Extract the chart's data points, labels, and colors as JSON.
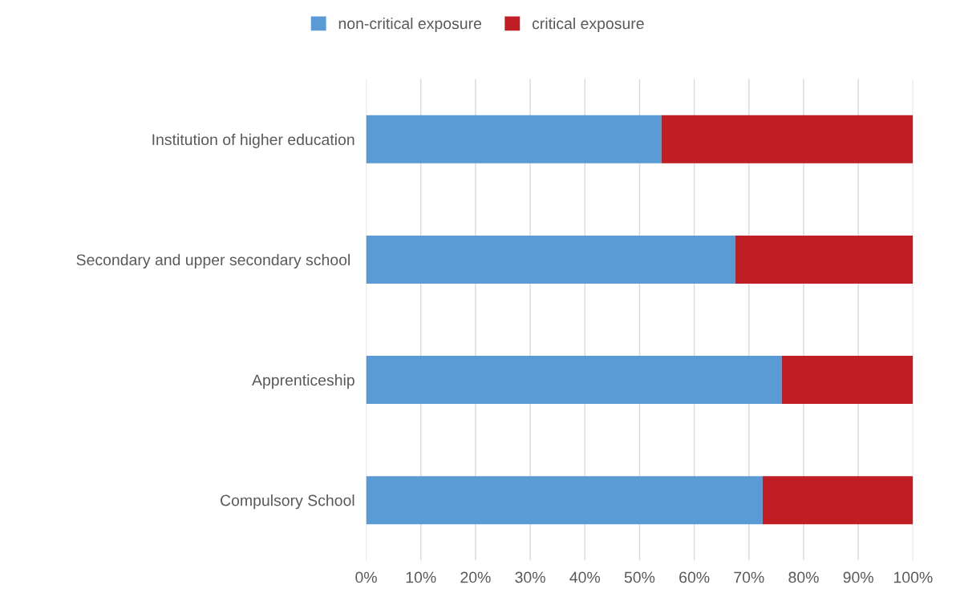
{
  "chart_data": {
    "type": "bar",
    "orientation": "horizontal",
    "stacked": true,
    "categories": [
      "Institution of higher education",
      "Secondary and upper secondary school ",
      "Apprenticeship",
      "Compulsory School"
    ],
    "series": [
      {
        "name": "non-critical exposure",
        "color": "#5b9bd5",
        "values": [
          54,
          67.5,
          76,
          72.5
        ]
      },
      {
        "name": "critical exposure",
        "color": "#be1e24",
        "values": [
          46,
          32.5,
          24,
          27.5
        ]
      }
    ],
    "xlim": [
      0,
      100
    ],
    "xticks": [
      {
        "value": 0,
        "label": "0%"
      },
      {
        "value": 10,
        "label": "10%"
      },
      {
        "value": 20,
        "label": "20%"
      },
      {
        "value": 30,
        "label": "30%"
      },
      {
        "value": 40,
        "label": "40%"
      },
      {
        "value": 50,
        "label": "50%"
      },
      {
        "value": 60,
        "label": "60%"
      },
      {
        "value": 70,
        "label": "70%"
      },
      {
        "value": 80,
        "label": "80%"
      },
      {
        "value": 90,
        "label": "90%"
      },
      {
        "value": 100,
        "label": "100%"
      }
    ],
    "grid": "x",
    "legend": "top"
  }
}
